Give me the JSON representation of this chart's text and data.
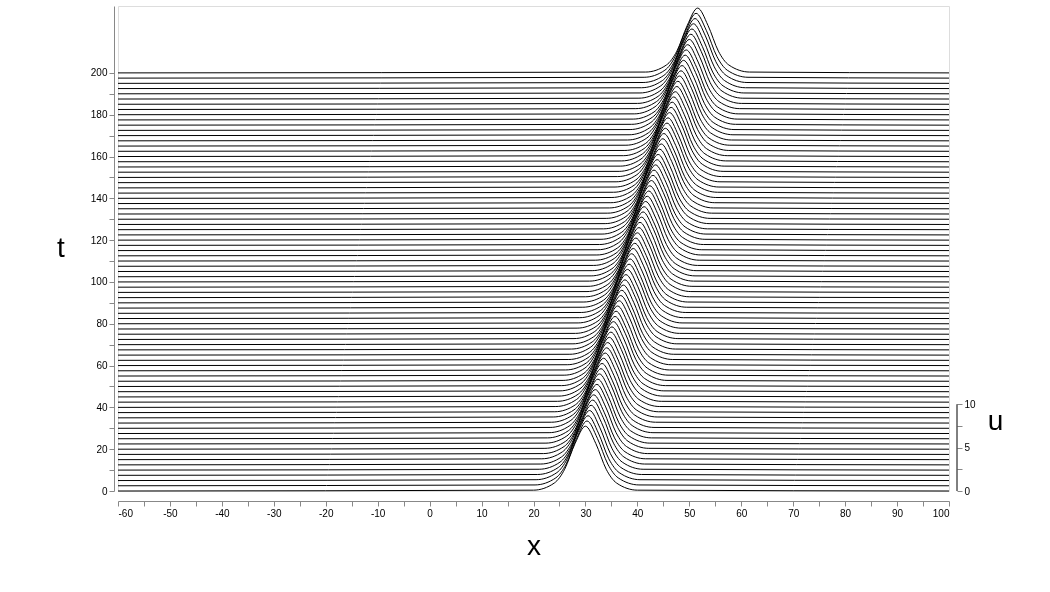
{
  "chart_data": {
    "type": "line",
    "xlabel": "x",
    "ylabel": "t",
    "y2label": "u",
    "color": "#000000",
    "line_style": "solid",
    "xlim": [
      -60,
      100
    ],
    "ylim": [
      0,
      232
    ],
    "y2lim": [
      0,
      55.9
    ],
    "xticks": [
      -60,
      {
        "value": -55,
        "label": null
      },
      -50,
      {
        "value": -45,
        "label": null
      },
      -40,
      {
        "value": -35,
        "label": null
      },
      -30,
      {
        "value": -25,
        "label": null
      },
      -20,
      {
        "value": -15,
        "label": null
      },
      -10,
      {
        "value": -5,
        "label": null
      },
      0,
      {
        "value": 5,
        "label": null
      },
      10,
      {
        "value": 15,
        "label": null
      },
      20,
      {
        "value": 25,
        "label": null
      },
      30,
      {
        "value": 35,
        "label": null
      },
      40,
      {
        "value": 45,
        "label": null
      },
      50,
      {
        "value": 55,
        "label": null
      },
      60,
      {
        "value": 65,
        "label": null
      },
      70,
      {
        "value": 75,
        "label": null
      },
      80,
      {
        "value": 85,
        "label": null
      },
      90,
      {
        "value": 95,
        "label": null
      },
      100
    ],
    "yticks": [
      0,
      {
        "value": 10,
        "label": null
      },
      20,
      {
        "value": 30,
        "label": null
      },
      40,
      {
        "value": 50,
        "label": null
      },
      60,
      {
        "value": 70,
        "label": null
      },
      80,
      {
        "value": 90,
        "label": null
      },
      100,
      {
        "value": 110,
        "label": null
      },
      120,
      {
        "value": 130,
        "label": null
      },
      140,
      {
        "value": 150,
        "label": null
      },
      160,
      {
        "value": 170,
        "label": null
      },
      180,
      {
        "value": 190,
        "label": null
      },
      200
    ],
    "y2ticks": [
      0,
      {
        "value": 2.5,
        "label": null
      },
      5,
      {
        "value": 7.5,
        "label": null
      },
      10
    ],
    "series": [
      {
        "x": [
          -60,
          20,
          24,
          26,
          28,
          30,
          32,
          34,
          36,
          40,
          100
        ],
        "values": [
          0,
          0.4,
          3.8,
          10.4,
          22.7,
          31,
          22.7,
          10.4,
          3.8,
          0.4,
          0
        ]
      },
      {
        "x": [
          -60,
          20.3,
          24.3,
          26.3,
          28.3,
          30.3,
          32.3,
          34.3,
          36.3,
          40.3,
          100
        ],
        "values": [
          2.5,
          2.9,
          6.3,
          12.9,
          25.2,
          33.5,
          25.2,
          12.9,
          6.3,
          2.9,
          2.5
        ]
      },
      {
        "x": [
          -60,
          20.5,
          24.5,
          26.5,
          28.5,
          30.5,
          32.5,
          34.5,
          36.5,
          40.5,
          100
        ],
        "values": [
          5,
          5.4,
          8.8,
          15.4,
          27.7,
          36,
          27.7,
          15.4,
          8.8,
          5.4,
          5
        ]
      },
      {
        "x": [
          -60,
          20.8,
          24.8,
          26.8,
          28.8,
          30.8,
          32.8,
          34.8,
          36.8,
          40.8,
          100
        ],
        "values": [
          7.5,
          7.9,
          11.3,
          17.9,
          30.2,
          38.5,
          30.2,
          17.9,
          11.3,
          7.9,
          7.5
        ]
      },
      {
        "x": [
          -60,
          21.1,
          25.1,
          27.1,
          29.1,
          31.1,
          33.1,
          35.1,
          37.1,
          41.1,
          100
        ],
        "values": [
          10,
          10.4,
          13.8,
          20.4,
          32.7,
          41,
          32.7,
          20.4,
          13.8,
          10.4,
          10
        ]
      },
      {
        "x": [
          -60,
          21.4,
          25.4,
          27.4,
          29.4,
          31.4,
          33.4,
          35.4,
          37.4,
          41.4,
          100
        ],
        "values": [
          12.5,
          12.9,
          16.3,
          22.9,
          35.2,
          43.5,
          35.2,
          22.9,
          16.3,
          12.9,
          12.5
        ]
      },
      {
        "x": [
          -60,
          21.6,
          25.6,
          27.6,
          29.6,
          31.6,
          33.6,
          35.6,
          37.6,
          41.6,
          100
        ],
        "values": [
          15,
          15.4,
          18.8,
          25.4,
          37.7,
          46,
          37.7,
          25.4,
          18.8,
          15.4,
          15
        ]
      },
      {
        "x": [
          -60,
          21.9,
          25.9,
          27.9,
          29.9,
          31.9,
          33.9,
          35.9,
          37.9,
          41.9,
          100
        ],
        "values": [
          17.5,
          17.9,
          21.3,
          27.9,
          40.2,
          48.5,
          40.2,
          27.9,
          21.3,
          17.9,
          17.5
        ]
      },
      {
        "x": [
          -60,
          22.2,
          26.2,
          28.2,
          30.2,
          32.2,
          34.2,
          36.2,
          38.2,
          42.2,
          100
        ],
        "values": [
          20,
          20.4,
          23.8,
          30.4,
          42.7,
          51,
          42.7,
          30.4,
          23.8,
          20.4,
          20
        ]
      },
      {
        "x": [
          -60,
          22.4,
          26.4,
          28.4,
          30.4,
          32.4,
          34.4,
          36.4,
          38.4,
          42.4,
          100
        ],
        "values": [
          22.5,
          22.9,
          26.3,
          32.9,
          45.2,
          53.5,
          45.2,
          32.9,
          26.3,
          22.9,
          22.5
        ]
      },
      {
        "x": [
          -60,
          22.7,
          26.7,
          28.7,
          30.7,
          32.7,
          34.7,
          36.7,
          38.7,
          42.7,
          100
        ],
        "values": [
          25,
          25.4,
          28.8,
          35.4,
          47.7,
          56,
          47.7,
          35.4,
          28.8,
          25.4,
          25
        ]
      },
      {
        "x": [
          -60,
          23,
          27,
          29,
          31,
          33,
          35,
          37,
          39,
          43,
          100
        ],
        "values": [
          27.5,
          27.9,
          31.3,
          37.9,
          50.2,
          58.5,
          50.2,
          37.9,
          31.3,
          27.9,
          27.5
        ]
      },
      {
        "x": [
          -60,
          23.2,
          27.2,
          29.2,
          31.2,
          33.2,
          35.2,
          37.2,
          39.2,
          43.2,
          100
        ],
        "values": [
          30,
          30.4,
          33.8,
          40.4,
          52.7,
          61,
          52.7,
          40.4,
          33.8,
          30.4,
          30
        ]
      },
      {
        "x": [
          -60,
          23.5,
          27.5,
          29.5,
          31.5,
          33.5,
          35.5,
          37.5,
          39.5,
          43.5,
          100
        ],
        "values": [
          32.5,
          32.9,
          36.3,
          42.9,
          55.2,
          63.5,
          55.2,
          42.9,
          36.3,
          32.9,
          32.5
        ]
      },
      {
        "x": [
          -60,
          23.8,
          27.8,
          29.8,
          31.8,
          33.8,
          35.8,
          37.8,
          39.8,
          43.8,
          100
        ],
        "values": [
          35,
          35.4,
          38.8,
          45.4,
          57.7,
          66,
          57.7,
          45.4,
          38.8,
          35.4,
          35
        ]
      },
      {
        "x": [
          -60,
          24.1,
          28.1,
          30.1,
          32.1,
          34.1,
          36.1,
          38.1,
          40.1,
          44.1,
          100
        ],
        "values": [
          37.5,
          37.9,
          41.3,
          47.9,
          60.2,
          68.5,
          60.2,
          47.9,
          41.3,
          37.9,
          37.5
        ]
      },
      {
        "x": [
          -60,
          24.3,
          28.3,
          30.3,
          32.3,
          34.3,
          36.3,
          38.3,
          40.3,
          44.3,
          100
        ],
        "values": [
          40,
          40.4,
          43.8,
          50.4,
          62.7,
          71,
          62.7,
          50.4,
          43.8,
          40.4,
          40
        ]
      },
      {
        "x": [
          -60,
          24.6,
          28.6,
          30.6,
          32.6,
          34.6,
          36.6,
          38.6,
          40.6,
          44.6,
          100
        ],
        "values": [
          42.5,
          42.9,
          46.3,
          52.9,
          65.2,
          73.5,
          65.2,
          52.9,
          46.3,
          42.9,
          42.5
        ]
      },
      {
        "x": [
          -60,
          24.9,
          28.9,
          30.9,
          32.9,
          34.9,
          36.9,
          38.9,
          40.9,
          44.9,
          100
        ],
        "values": [
          45,
          45.4,
          48.8,
          55.4,
          67.7,
          76,
          67.7,
          55.4,
          48.8,
          45.4,
          45
        ]
      },
      {
        "x": [
          -60,
          25.1,
          29.1,
          31.1,
          33.1,
          35.1,
          37.1,
          39.1,
          41.1,
          45.1,
          100
        ],
        "values": [
          47.5,
          47.9,
          51.3,
          57.9,
          70.2,
          78.5,
          70.2,
          57.9,
          51.3,
          47.9,
          47.5
        ]
      },
      {
        "x": [
          -60,
          25.4,
          29.4,
          31.4,
          33.4,
          35.4,
          37.4,
          39.4,
          41.4,
          45.4,
          100
        ],
        "values": [
          50,
          50.4,
          53.8,
          60.4,
          72.7,
          81,
          72.7,
          60.4,
          53.8,
          50.4,
          50
        ]
      },
      {
        "x": [
          -60,
          25.7,
          29.7,
          31.7,
          33.7,
          35.7,
          37.7,
          39.7,
          41.7,
          45.7,
          100
        ],
        "values": [
          52.5,
          52.9,
          56.3,
          62.9,
          75.2,
          83.5,
          75.2,
          62.9,
          56.3,
          52.9,
          52.5
        ]
      },
      {
        "x": [
          -60,
          25.9,
          29.9,
          31.9,
          33.9,
          35.9,
          37.9,
          39.9,
          41.9,
          45.9,
          100
        ],
        "values": [
          55,
          55.4,
          58.8,
          65.4,
          77.7,
          86,
          77.7,
          65.4,
          58.8,
          55.4,
          55
        ]
      },
      {
        "x": [
          -60,
          26.2,
          30.2,
          32.2,
          34.2,
          36.2,
          38.2,
          40.2,
          42.2,
          46.2,
          100
        ],
        "values": [
          57.5,
          57.9,
          61.3,
          67.9,
          80.2,
          88.5,
          80.2,
          67.9,
          61.3,
          57.9,
          57.5
        ]
      },
      {
        "x": [
          -60,
          26.5,
          30.5,
          32.5,
          34.5,
          36.5,
          38.5,
          40.5,
          42.5,
          46.5,
          100
        ],
        "values": [
          60,
          60.4,
          63.8,
          70.4,
          82.7,
          91,
          82.7,
          70.4,
          63.8,
          60.4,
          60
        ]
      },
      {
        "x": [
          -60,
          26.8,
          30.8,
          32.8,
          34.8,
          36.8,
          38.8,
          40.8,
          42.8,
          46.8,
          100
        ],
        "values": [
          62.5,
          62.9,
          66.3,
          72.9,
          85.2,
          93.5,
          85.2,
          72.9,
          66.3,
          62.9,
          62.5
        ]
      },
      {
        "x": [
          -60,
          27,
          31,
          33,
          35,
          37,
          39,
          41,
          43,
          47,
          100
        ],
        "values": [
          65,
          65.4,
          68.8,
          75.4,
          87.7,
          96,
          87.7,
          75.4,
          68.8,
          65.4,
          65
        ]
      },
      {
        "x": [
          -60,
          27.3,
          31.3,
          33.3,
          35.3,
          37.3,
          39.3,
          41.3,
          43.3,
          47.3,
          100
        ],
        "values": [
          67.5,
          67.9,
          71.3,
          77.9,
          90.2,
          98.5,
          90.2,
          77.9,
          71.3,
          67.9,
          67.5
        ]
      },
      {
        "x": [
          -60,
          27.6,
          31.6,
          33.6,
          35.6,
          37.6,
          39.6,
          41.6,
          43.6,
          47.6,
          100
        ],
        "values": [
          70,
          70.4,
          73.8,
          80.4,
          92.7,
          101,
          92.7,
          80.4,
          73.8,
          70.4,
          70
        ]
      },
      {
        "x": [
          -60,
          27.8,
          31.8,
          33.8,
          35.8,
          37.8,
          39.8,
          41.8,
          43.8,
          47.8,
          100
        ],
        "values": [
          72.5,
          72.9,
          76.3,
          82.9,
          95.2,
          103.5,
          95.2,
          82.9,
          76.3,
          72.9,
          72.5
        ]
      },
      {
        "x": [
          -60,
          28.1,
          32.1,
          34.1,
          36.1,
          38.1,
          40.1,
          42.1,
          44.1,
          48.1,
          100
        ],
        "values": [
          75,
          75.4,
          78.8,
          85.4,
          97.7,
          106,
          97.7,
          85.4,
          78.8,
          75.4,
          75
        ]
      },
      {
        "x": [
          -60,
          28.4,
          32.4,
          34.4,
          36.4,
          38.4,
          40.4,
          42.4,
          44.4,
          48.4,
          100
        ],
        "values": [
          77.5,
          77.9,
          81.3,
          87.9,
          100.2,
          108.5,
          100.2,
          87.9,
          81.3,
          77.9,
          77.5
        ]
      },
      {
        "x": [
          -60,
          28.6,
          32.6,
          34.6,
          36.6,
          38.6,
          40.6,
          42.6,
          44.6,
          48.6,
          100
        ],
        "values": [
          80,
          80.4,
          83.8,
          90.4,
          102.7,
          111,
          102.7,
          90.4,
          83.8,
          80.4,
          80
        ]
      },
      {
        "x": [
          -60,
          28.9,
          32.9,
          34.9,
          36.9,
          38.9,
          40.9,
          42.9,
          44.9,
          48.9,
          100
        ],
        "values": [
          82.5,
          82.9,
          86.3,
          92.9,
          105.2,
          113.5,
          105.2,
          92.9,
          86.3,
          82.9,
          82.5
        ]
      },
      {
        "x": [
          -60,
          29.2,
          33.2,
          35.2,
          37.2,
          39.2,
          41.2,
          43.2,
          45.2,
          49.2,
          100
        ],
        "values": [
          85,
          85.4,
          88.8,
          95.4,
          107.7,
          116,
          107.7,
          95.4,
          88.8,
          85.4,
          85
        ]
      },
      {
        "x": [
          -60,
          29.5,
          33.5,
          35.5,
          37.5,
          39.5,
          41.5,
          43.5,
          45.5,
          49.5,
          100
        ],
        "values": [
          87.5,
          87.9,
          91.3,
          97.9,
          110.2,
          118.5,
          110.2,
          97.9,
          91.3,
          87.9,
          87.5
        ]
      },
      {
        "x": [
          -60,
          29.7,
          33.7,
          35.7,
          37.7,
          39.7,
          41.7,
          43.7,
          45.7,
          49.7,
          100
        ],
        "values": [
          90,
          90.4,
          93.8,
          100.4,
          112.7,
          121,
          112.7,
          100.4,
          93.8,
          90.4,
          90
        ]
      },
      {
        "x": [
          -60,
          30,
          34,
          36,
          38,
          40,
          42,
          44,
          46,
          50,
          100
        ],
        "values": [
          92.5,
          92.9,
          96.3,
          102.9,
          115.2,
          123.5,
          115.2,
          102.9,
          96.3,
          92.9,
          92.5
        ]
      },
      {
        "x": [
          -60,
          30.3,
          34.3,
          36.3,
          38.3,
          40.3,
          42.3,
          44.3,
          46.3,
          50.3,
          100
        ],
        "values": [
          95,
          95.4,
          98.8,
          105.4,
          117.7,
          126,
          117.7,
          105.4,
          98.8,
          95.4,
          95
        ]
      },
      {
        "x": [
          -60,
          30.5,
          34.5,
          36.5,
          38.5,
          40.5,
          42.5,
          44.5,
          46.5,
          50.5,
          100
        ],
        "values": [
          97.5,
          97.9,
          101.3,
          107.9,
          120.2,
          128.5,
          120.2,
          107.9,
          101.3,
          97.9,
          97.5
        ]
      },
      {
        "x": [
          -60,
          30.8,
          34.8,
          36.8,
          38.8,
          40.8,
          42.8,
          44.8,
          46.8,
          50.8,
          100
        ],
        "values": [
          100,
          100.4,
          103.8,
          110.4,
          122.7,
          131,
          122.7,
          110.4,
          103.8,
          100.4,
          100
        ]
      },
      {
        "x": [
          -60,
          31.1,
          35.1,
          37.1,
          39.1,
          41.1,
          43.1,
          45.1,
          47.1,
          51.1,
          100
        ],
        "values": [
          102.5,
          102.9,
          106.3,
          112.9,
          125.2,
          133.5,
          125.2,
          112.9,
          106.3,
          102.9,
          102.5
        ]
      },
      {
        "x": [
          -60,
          31.3,
          35.3,
          37.3,
          39.3,
          41.3,
          43.3,
          45.3,
          47.3,
          51.3,
          100
        ],
        "values": [
          105,
          105.4,
          108.8,
          115.4,
          127.7,
          136,
          127.7,
          115.4,
          108.8,
          105.4,
          105
        ]
      },
      {
        "x": [
          -60,
          31.6,
          35.6,
          37.6,
          39.6,
          41.6,
          43.6,
          45.6,
          47.6,
          51.6,
          100
        ],
        "values": [
          107.5,
          107.9,
          111.3,
          117.9,
          130.2,
          138.5,
          130.2,
          117.9,
          111.3,
          107.9,
          107.5
        ]
      },
      {
        "x": [
          -60,
          31.9,
          35.9,
          37.9,
          39.9,
          41.9,
          43.9,
          45.9,
          47.9,
          51.9,
          100
        ],
        "values": [
          110,
          110.4,
          113.8,
          120.4,
          132.7,
          141,
          132.7,
          120.4,
          113.8,
          110.4,
          110
        ]
      },
      {
        "x": [
          -60,
          32.2,
          36.2,
          38.2,
          40.2,
          42.2,
          44.2,
          46.2,
          48.2,
          52.2,
          100
        ],
        "values": [
          112.5,
          112.9,
          116.3,
          122.9,
          135.2,
          143.5,
          135.2,
          122.9,
          116.3,
          112.9,
          112.5
        ]
      },
      {
        "x": [
          -60,
          32.4,
          36.4,
          38.4,
          40.4,
          42.4,
          44.4,
          46.4,
          48.4,
          52.4,
          100
        ],
        "values": [
          115,
          115.4,
          118.8,
          125.4,
          137.7,
          146,
          137.7,
          125.4,
          118.8,
          115.4,
          115
        ]
      },
      {
        "x": [
          -60,
          32.7,
          36.7,
          38.7,
          40.7,
          42.7,
          44.7,
          46.7,
          48.7,
          52.7,
          100
        ],
        "values": [
          117.5,
          117.9,
          121.3,
          127.9,
          140.2,
          148.5,
          140.2,
          127.9,
          121.3,
          117.9,
          117.5
        ]
      },
      {
        "x": [
          -60,
          33,
          37,
          39,
          41,
          43,
          45,
          47,
          49,
          53,
          100
        ],
        "values": [
          120,
          120.4,
          123.8,
          130.4,
          142.7,
          151,
          142.7,
          130.4,
          123.8,
          120.4,
          120
        ]
      },
      {
        "x": [
          -60,
          33.2,
          37.2,
          39.2,
          41.2,
          43.2,
          45.2,
          47.2,
          49.2,
          53.2,
          100
        ],
        "values": [
          122.5,
          122.9,
          126.3,
          132.9,
          145.2,
          153.5,
          145.2,
          132.9,
          126.3,
          122.9,
          122.5
        ]
      },
      {
        "x": [
          -60,
          33.5,
          37.5,
          39.5,
          41.5,
          43.5,
          45.5,
          47.5,
          49.5,
          53.5,
          100
        ],
        "values": [
          125,
          125.4,
          128.8,
          135.4,
          147.7,
          156,
          147.7,
          135.4,
          128.8,
          125.4,
          125
        ]
      },
      {
        "x": [
          -60,
          33.8,
          37.8,
          39.8,
          41.8,
          43.8,
          45.8,
          47.8,
          49.8,
          53.8,
          100
        ],
        "values": [
          127.5,
          127.9,
          131.3,
          137.9,
          150.2,
          158.5,
          150.2,
          137.9,
          131.3,
          127.9,
          127.5
        ]
      },
      {
        "x": [
          -60,
          34,
          38,
          40,
          42,
          44,
          46,
          48,
          50,
          54,
          100
        ],
        "values": [
          130,
          130.4,
          133.8,
          140.4,
          152.7,
          161,
          152.7,
          140.4,
          133.8,
          130.4,
          130
        ]
      },
      {
        "x": [
          -60,
          34.3,
          38.3,
          40.3,
          42.3,
          44.3,
          46.3,
          48.3,
          50.3,
          54.3,
          100
        ],
        "values": [
          132.5,
          132.9,
          136.3,
          142.9,
          155.2,
          163.5,
          155.2,
          142.9,
          136.3,
          132.9,
          132.5
        ]
      },
      {
        "x": [
          -60,
          34.6,
          38.6,
          40.6,
          42.6,
          44.6,
          46.6,
          48.6,
          50.6,
          54.6,
          100
        ],
        "values": [
          135,
          135.4,
          138.8,
          145.4,
          157.7,
          166,
          157.7,
          145.4,
          138.8,
          135.4,
          135
        ]
      },
      {
        "x": [
          -60,
          34.9,
          38.9,
          40.9,
          42.9,
          44.9,
          46.9,
          48.9,
          50.9,
          54.9,
          100
        ],
        "values": [
          137.5,
          137.9,
          141.3,
          147.9,
          160.2,
          168.5,
          160.2,
          147.9,
          141.3,
          137.9,
          137.5
        ]
      },
      {
        "x": [
          -60,
          35.1,
          39.1,
          41.1,
          43.1,
          45.1,
          47.1,
          49.1,
          51.1,
          55.1,
          100
        ],
        "values": [
          140,
          140.4,
          143.8,
          150.4,
          162.7,
          171,
          162.7,
          150.4,
          143.8,
          140.4,
          140
        ]
      },
      {
        "x": [
          -60,
          35.4,
          39.4,
          41.4,
          43.4,
          45.4,
          47.4,
          49.4,
          51.4,
          55.4,
          100
        ],
        "values": [
          142.5,
          142.9,
          146.3,
          152.9,
          165.2,
          173.5,
          165.2,
          152.9,
          146.3,
          142.9,
          142.5
        ]
      },
      {
        "x": [
          -60,
          35.7,
          39.7,
          41.7,
          43.7,
          45.7,
          47.7,
          49.7,
          51.7,
          55.7,
          100
        ],
        "values": [
          145,
          145.4,
          148.8,
          155.4,
          167.7,
          176,
          167.7,
          155.4,
          148.8,
          145.4,
          145
        ]
      },
      {
        "x": [
          -60,
          35.9,
          39.9,
          41.9,
          43.9,
          45.9,
          47.9,
          49.9,
          51.9,
          55.9,
          100
        ],
        "values": [
          147.5,
          147.9,
          151.3,
          157.9,
          170.2,
          178.5,
          170.2,
          157.9,
          151.3,
          147.9,
          147.5
        ]
      },
      {
        "x": [
          -60,
          36.2,
          40.2,
          42.2,
          44.2,
          46.2,
          48.2,
          50.2,
          52.2,
          56.2,
          100
        ],
        "values": [
          150,
          150.4,
          153.8,
          160.4,
          172.7,
          181,
          172.7,
          160.4,
          153.8,
          150.4,
          150
        ]
      },
      {
        "x": [
          -60,
          36.5,
          40.5,
          42.5,
          44.5,
          46.5,
          48.5,
          50.5,
          52.5,
          56.5,
          100
        ],
        "values": [
          152.5,
          152.9,
          156.3,
          162.9,
          175.2,
          183.5,
          175.2,
          162.9,
          156.3,
          152.9,
          152.5
        ]
      },
      {
        "x": [
          -60,
          36.7,
          40.7,
          42.7,
          44.7,
          46.7,
          48.7,
          50.7,
          52.7,
          56.7,
          100
        ],
        "values": [
          155,
          155.4,
          158.8,
          165.4,
          177.7,
          186,
          177.7,
          165.4,
          158.8,
          155.4,
          155
        ]
      },
      {
        "x": [
          -60,
          37,
          41,
          43,
          45,
          47,
          49,
          51,
          53,
          57,
          100
        ],
        "values": [
          157.5,
          157.9,
          161.3,
          167.9,
          180.2,
          188.5,
          180.2,
          167.9,
          161.3,
          157.9,
          157.5
        ]
      },
      {
        "x": [
          -60,
          37.3,
          41.3,
          43.3,
          45.3,
          47.3,
          49.3,
          51.3,
          53.3,
          57.3,
          100
        ],
        "values": [
          160,
          160.4,
          163.8,
          170.4,
          182.7,
          191,
          182.7,
          170.4,
          163.8,
          160.4,
          160
        ]
      },
      {
        "x": [
          -60,
          37.6,
          41.6,
          43.6,
          45.6,
          47.6,
          49.6,
          51.6,
          53.6,
          57.6,
          100
        ],
        "values": [
          162.5,
          162.9,
          166.3,
          172.9,
          185.2,
          193.5,
          185.2,
          172.9,
          166.3,
          162.9,
          162.5
        ]
      },
      {
        "x": [
          -60,
          37.8,
          41.8,
          43.8,
          45.8,
          47.8,
          49.8,
          51.8,
          53.8,
          57.8,
          100
        ],
        "values": [
          165,
          165.4,
          168.8,
          175.4,
          187.7,
          196,
          187.7,
          175.4,
          168.8,
          165.4,
          165
        ]
      },
      {
        "x": [
          -60,
          38.1,
          42.1,
          44.1,
          46.1,
          48.1,
          50.1,
          52.1,
          54.1,
          58.1,
          100
        ],
        "values": [
          167.5,
          167.9,
          171.3,
          177.9,
          190.2,
          198.5,
          190.2,
          177.9,
          171.3,
          167.9,
          167.5
        ]
      },
      {
        "x": [
          -60,
          38.4,
          42.4,
          44.4,
          46.4,
          48.4,
          50.4,
          52.4,
          54.4,
          58.4,
          100
        ],
        "values": [
          170,
          170.4,
          173.8,
          180.4,
          192.7,
          201,
          192.7,
          180.4,
          173.8,
          170.4,
          170
        ]
      },
      {
        "x": [
          -60,
          38.6,
          42.6,
          44.6,
          46.6,
          48.6,
          50.6,
          52.6,
          54.6,
          58.6,
          100
        ],
        "values": [
          172.5,
          172.9,
          176.3,
          182.9,
          195.2,
          203.5,
          195.2,
          182.9,
          176.3,
          172.9,
          172.5
        ]
      },
      {
        "x": [
          -60,
          38.9,
          42.9,
          44.9,
          46.9,
          48.9,
          50.9,
          52.9,
          54.9,
          58.9,
          100
        ],
        "values": [
          175,
          175.4,
          178.8,
          185.4,
          197.7,
          206,
          197.7,
          185.4,
          178.8,
          175.4,
          175
        ]
      },
      {
        "x": [
          -60,
          39.2,
          43.2,
          45.2,
          47.2,
          49.2,
          51.2,
          53.2,
          55.2,
          59.2,
          100
        ],
        "values": [
          177.5,
          177.9,
          181.3,
          187.9,
          200.2,
          208.5,
          200.2,
          187.9,
          181.3,
          177.9,
          177.5
        ]
      },
      {
        "x": [
          -60,
          39.4,
          43.4,
          45.4,
          47.4,
          49.4,
          51.4,
          53.4,
          55.4,
          59.4,
          100
        ],
        "values": [
          180,
          180.4,
          183.8,
          190.4,
          202.7,
          211,
          202.7,
          190.4,
          183.8,
          180.4,
          180
        ]
      },
      {
        "x": [
          -60,
          39.7,
          43.7,
          45.7,
          47.7,
          49.7,
          51.7,
          53.7,
          55.7,
          59.7,
          100
        ],
        "values": [
          182.5,
          182.9,
          186.3,
          192.9,
          205.2,
          213.5,
          205.2,
          192.9,
          186.3,
          182.9,
          182.5
        ]
      },
      {
        "x": [
          -60,
          40,
          44,
          46,
          48,
          50,
          52,
          54,
          56,
          60,
          100
        ],
        "values": [
          185,
          185.4,
          188.8,
          195.4,
          207.7,
          216,
          207.7,
          195.4,
          188.8,
          185.4,
          185
        ]
      },
      {
        "x": [
          -60,
          40.3,
          44.3,
          46.3,
          48.3,
          50.3,
          52.3,
          54.3,
          56.3,
          60.3,
          100
        ],
        "values": [
          187.5,
          187.9,
          191.3,
          197.9,
          210.2,
          218.5,
          210.2,
          197.9,
          191.3,
          187.9,
          187.5
        ]
      },
      {
        "x": [
          -60,
          40.5,
          44.5,
          46.5,
          48.5,
          50.5,
          52.5,
          54.5,
          56.5,
          60.5,
          100
        ],
        "values": [
          190,
          190.4,
          193.8,
          200.4,
          212.7,
          221,
          212.7,
          200.4,
          193.8,
          190.4,
          190
        ]
      },
      {
        "x": [
          -60,
          40.8,
          44.8,
          46.8,
          48.8,
          50.8,
          52.8,
          54.8,
          56.8,
          60.8,
          100
        ],
        "values": [
          192.5,
          192.9,
          196.3,
          202.9,
          215.2,
          223.5,
          215.2,
          202.9,
          196.3,
          192.9,
          192.5
        ]
      },
      {
        "x": [
          -60,
          41.1,
          45.1,
          47.1,
          49.1,
          51.1,
          53.1,
          55.1,
          57.1,
          61.1,
          100
        ],
        "values": [
          195,
          195.4,
          198.8,
          205.4,
          217.7,
          226,
          217.7,
          205.4,
          198.8,
          195.4,
          195
        ]
      },
      {
        "x": [
          -60,
          41.3,
          45.3,
          47.3,
          49.3,
          51.3,
          53.3,
          55.3,
          57.3,
          61.3,
          100
        ],
        "values": [
          197.5,
          197.9,
          201.3,
          207.9,
          220.2,
          228.5,
          220.2,
          207.9,
          201.3,
          197.9,
          197.5
        ]
      },
      {
        "x": [
          -60,
          41.6,
          45.6,
          47.6,
          49.6,
          51.6,
          53.6,
          55.6,
          57.6,
          61.6,
          100
        ],
        "values": [
          200,
          200.4,
          203.8,
          210.4,
          222.7,
          231,
          222.7,
          210.4,
          203.8,
          200.4,
          200
        ]
      }
    ]
  }
}
